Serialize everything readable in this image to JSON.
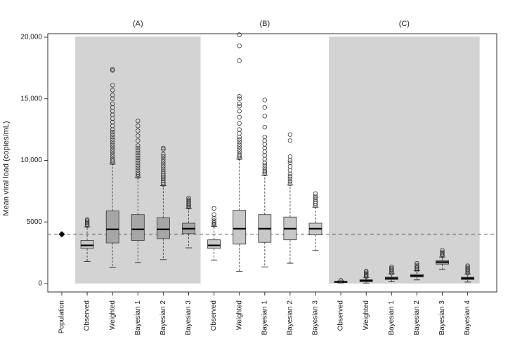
{
  "chart_data": {
    "type": "boxplot",
    "ylabel": "Mean viral load (copies/mL)",
    "ylim": [
      0,
      20000
    ],
    "y_ticks": [
      0,
      5000,
      10000,
      15000,
      20000
    ],
    "y_tick_labels": [
      "0",
      "5000",
      "10,000",
      "15,000",
      "20,000"
    ],
    "reference_line": 4000,
    "reference_style": "dashed",
    "panels": [
      {
        "label": "(A)",
        "shaded": true
      },
      {
        "label": "(B)",
        "shaded": false
      },
      {
        "label": "(C)",
        "shaded": true
      }
    ],
    "population": {
      "label": "Population",
      "value": 4000
    },
    "groups": [
      {
        "panel": 0,
        "label": "Observed",
        "fill": "#c8c8c8",
        "min": 1800,
        "q1": 2850,
        "median": 3100,
        "q3": 3500,
        "max": 4600,
        "outliers": [
          4700,
          4800,
          4900,
          5000,
          5100,
          5200
        ]
      },
      {
        "panel": 0,
        "label": "Weighted",
        "fill": "#a6a6a6",
        "min": 1300,
        "q1": 3300,
        "median": 4400,
        "q3": 5900,
        "max": 9700,
        "outliers": [
          9800,
          9950,
          10100,
          10300,
          10500,
          10700,
          10900,
          11100,
          11300,
          11500,
          11700,
          11900,
          12100,
          12300,
          12500,
          12800,
          13100,
          13400,
          13700,
          14000,
          14300,
          14600,
          15000,
          15300,
          15700,
          16100,
          17300,
          17400
        ]
      },
      {
        "panel": 0,
        "label": "Bayesian 1",
        "fill": "#a6a6a6",
        "min": 1700,
        "q1": 3500,
        "median": 4400,
        "q3": 5600,
        "max": 8600,
        "outliers": [
          8700,
          8850,
          9000,
          9200,
          9400,
          9600,
          9800,
          10000,
          10200,
          10400,
          10600,
          10800,
          11000,
          11200,
          11600,
          12000,
          12400,
          12800,
          13200
        ]
      },
      {
        "panel": 0,
        "label": "Bayesian 2",
        "fill": "#a6a6a6",
        "min": 1950,
        "q1": 3650,
        "median": 4400,
        "q3": 5350,
        "max": 7950,
        "outliers": [
          8050,
          8200,
          8350,
          8500,
          8650,
          8800,
          8950,
          9100,
          9300,
          9500,
          9700,
          9900,
          10100,
          10300,
          10500,
          10900,
          11000
        ]
      },
      {
        "panel": 0,
        "label": "Bayesian 3",
        "fill": "#a6a6a6",
        "min": 2900,
        "q1": 4050,
        "median": 4450,
        "q3": 4900,
        "max": 6100,
        "outliers": [
          6200,
          6300,
          6400,
          6500,
          6600,
          6700,
          6800,
          6950
        ]
      },
      {
        "panel": 1,
        "label": "Observed",
        "fill": "#c8c8c8",
        "min": 1900,
        "q1": 2850,
        "median": 3100,
        "q3": 3550,
        "max": 4650,
        "outliers": [
          4750,
          4850,
          4950,
          5100,
          5300,
          5600,
          6100
        ]
      },
      {
        "panel": 1,
        "label": "Weighted",
        "fill": "#c8c8c8",
        "min": 1000,
        "q1": 3200,
        "median": 4450,
        "q3": 5950,
        "max": 10100,
        "outliers": [
          10200,
          10350,
          10500,
          10700,
          10900,
          11100,
          11300,
          11500,
          11700,
          11900,
          12200,
          12500,
          13000,
          13500,
          14000,
          14400,
          14600,
          15000,
          15200,
          18100,
          19300,
          20200
        ]
      },
      {
        "panel": 1,
        "label": "Bayesian 1",
        "fill": "#c8c8c8",
        "min": 1350,
        "q1": 3350,
        "median": 4450,
        "q3": 5600,
        "max": 8800,
        "outliers": [
          8900,
          9050,
          9200,
          9400,
          9600,
          9800,
          10100,
          10400,
          10700,
          11000,
          11300,
          11600,
          11900,
          12700,
          13600,
          14300,
          14900
        ]
      },
      {
        "panel": 1,
        "label": "Bayesian 2",
        "fill": "#c8c8c8",
        "min": 1650,
        "q1": 3550,
        "median": 4450,
        "q3": 5400,
        "max": 8000,
        "outliers": [
          8100,
          8300,
          8500,
          8700,
          8900,
          9200,
          9500,
          9800,
          10000,
          10300,
          11600,
          12100
        ]
      },
      {
        "panel": 1,
        "label": "Bayesian 3",
        "fill": "#c8c8c8",
        "min": 2700,
        "q1": 3950,
        "median": 4450,
        "q3": 4900,
        "max": 6200,
        "outliers": [
          6350,
          6500,
          6650,
          6800,
          6950,
          7100,
          7300
        ]
      },
      {
        "panel": 2,
        "label": "Observed",
        "fill": "#a6a6a6",
        "min": 50,
        "q1": 110,
        "median": 140,
        "q3": 170,
        "max": 220,
        "outliers": [
          240,
          260
        ]
      },
      {
        "panel": 2,
        "label": "Weighted",
        "fill": "#a6a6a6",
        "min": 40,
        "q1": 160,
        "median": 230,
        "q3": 310,
        "max": 500,
        "outliers": [
          550,
          650,
          750,
          850,
          950,
          1000
        ]
      },
      {
        "panel": 2,
        "label": "Bayesian 1",
        "fill": "#a6a6a6",
        "min": 150,
        "q1": 330,
        "median": 430,
        "q3": 520,
        "max": 800,
        "outliers": [
          850,
          950,
          1050,
          1150,
          1250,
          1350
        ]
      },
      {
        "panel": 2,
        "label": "Bayesian 2",
        "fill": "#a6a6a6",
        "min": 300,
        "q1": 530,
        "median": 630,
        "q3": 740,
        "max": 1050,
        "outliers": [
          1100,
          1200,
          1300,
          1400,
          1500,
          1650
        ]
      },
      {
        "panel": 2,
        "label": "Bayesian 3",
        "fill": "#a6a6a6",
        "min": 1150,
        "q1": 1580,
        "median": 1740,
        "q3": 1870,
        "max": 2150,
        "outliers": [
          2250,
          2350,
          2450,
          2550,
          2700
        ]
      },
      {
        "panel": 2,
        "label": "Bayesian 4",
        "fill": "#a6a6a6",
        "min": 120,
        "q1": 330,
        "median": 420,
        "q3": 510,
        "max": 780,
        "outliers": [
          850,
          950,
          1050,
          1150,
          1250,
          1350,
          1450
        ]
      }
    ]
  }
}
